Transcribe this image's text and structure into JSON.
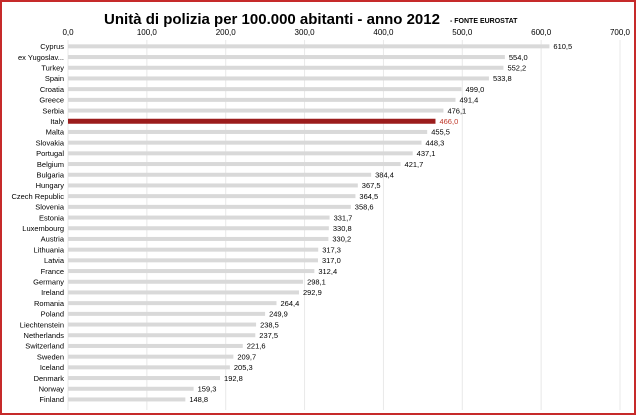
{
  "chart_data": {
    "type": "bar",
    "orientation": "horizontal",
    "title": "Unità di polizia per 100.000 abitanti - anno 2012",
    "subtitle": "- FONTE EUROSTAT",
    "xlim": [
      0,
      700
    ],
    "xticks": [
      "0,0",
      "100,0",
      "200,0",
      "300,0",
      "400,0",
      "500,0",
      "600,0",
      "700,0"
    ],
    "axis_position": "top",
    "grid": true,
    "categories": [
      "Cyprus",
      "ex Yugoslav...",
      "Turkey",
      "Spain",
      "Croatia",
      "Greece",
      "Serbia",
      "Italy",
      "Malta",
      "Slovakia",
      "Portugal",
      "Belgium",
      "Bulgaria",
      "Hungary",
      "Czech Republic",
      "Slovenia",
      "Estonia",
      "Luxembourg",
      "Austria",
      "Lithuania",
      "Latvia",
      "France",
      "Germany",
      "Ireland",
      "Romania",
      "Poland",
      "Liechtenstein",
      "Netherlands",
      "Switzerland",
      "Sweden",
      "Iceland",
      "Denmark",
      "Norway",
      "Finland"
    ],
    "values": [
      610.5,
      554.0,
      552.2,
      533.8,
      499.0,
      491.4,
      476.1,
      466.0,
      455.5,
      448.3,
      437.1,
      421.7,
      384.4,
      367.5,
      364.5,
      358.6,
      331.7,
      330.8,
      330.2,
      317.3,
      317.0,
      312.4,
      298.1,
      292.9,
      264.4,
      249.9,
      238.5,
      237.5,
      221.6,
      209.7,
      205.3,
      192.8,
      159.3,
      148.8
    ],
    "value_labels": [
      "610,5",
      "554,0",
      "552,2",
      "533,8",
      "499,0",
      "491,4",
      "476,1",
      "466,0",
      "455,5",
      "448,3",
      "437,1",
      "421,7",
      "384,4",
      "367,5",
      "364,5",
      "358,6",
      "331,7",
      "330,8",
      "330,2",
      "317,3",
      "317,0",
      "312,4",
      "298,1",
      "292,9",
      "264,4",
      "249,9",
      "238,5",
      "237,5",
      "221,6",
      "209,7",
      "205,3",
      "192,8",
      "159,3",
      "148,8"
    ],
    "highlight_category": "Italy",
    "colors": {
      "bar": "#d9d9d9",
      "highlight_bar": "#9b1c1c",
      "highlight_label": "#c0392b",
      "grid": "#e8e8e8",
      "frame": "#c62a2a"
    }
  }
}
